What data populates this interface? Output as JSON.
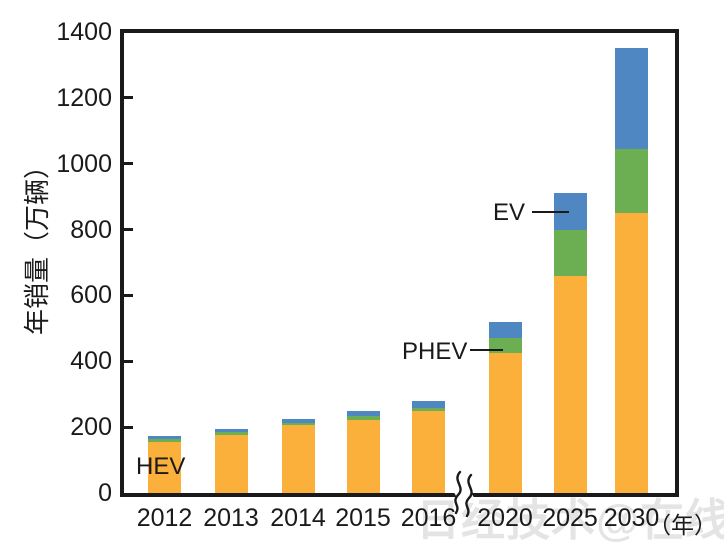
{
  "watermark": "日经技术@在线!",
  "colors": {
    "axis": "#1a1a1a",
    "watermark": "#e4e4e4",
    "background": "#ffffff",
    "hev": "#FBB03C",
    "phev": "#6CAE52",
    "ev": "#4E87C2"
  },
  "chart_data": {
    "type": "bar",
    "stacked": true,
    "title": "",
    "ylabel": "年销量（万辆）",
    "xlabel_unit": "（年）",
    "ylim": [
      0,
      1400
    ],
    "yticks": [
      0,
      200,
      400,
      600,
      800,
      1000,
      1200,
      1400
    ],
    "grid": false,
    "legend_position": "inline-annotations",
    "axis_break_between": [
      "2016",
      "2020"
    ],
    "categories": [
      "2012",
      "2013",
      "2014",
      "2015",
      "2016",
      "2020",
      "2025",
      "2030"
    ],
    "series": [
      {
        "name": "HEV",
        "color": "#FBB03C",
        "values": [
          155,
          175,
          205,
          223,
          250,
          425,
          660,
          850
        ]
      },
      {
        "name": "PHEV",
        "color": "#6CAE52",
        "values": [
          8,
          9,
          9,
          10,
          9,
          45,
          140,
          195
        ]
      },
      {
        "name": "EV",
        "color": "#4E87C2",
        "values": [
          9,
          9,
          10,
          15,
          19,
          50,
          110,
          305
        ]
      }
    ],
    "totals": [
      172,
      193,
      224,
      248,
      278,
      520,
      910,
      1350
    ],
    "annotations": [
      {
        "label": "HEV",
        "series": "HEV",
        "category": "2012"
      },
      {
        "label": "PHEV",
        "series": "PHEV",
        "category": "2020"
      },
      {
        "label": "EV",
        "series": "EV",
        "category": "2025"
      }
    ]
  }
}
